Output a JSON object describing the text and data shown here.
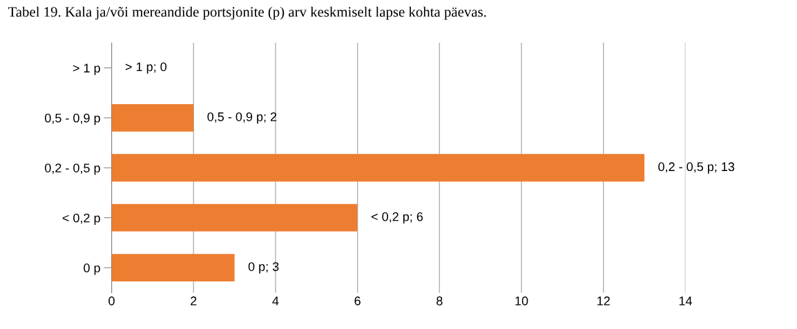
{
  "chart_data": {
    "type": "bar",
    "orientation": "horizontal",
    "title": "Tabel 19. Kala ja/või mereandide portsjonite (p) arv keskmiselt lapse kohta päevas.",
    "categories": [
      "> 1 p",
      "0,5 - 0,9 p",
      "0,2 - 0,5 p",
      "< 0,2 p",
      "0 p"
    ],
    "values": [
      0,
      2,
      13,
      6,
      3
    ],
    "value_labels": [
      "> 1 p; 0",
      "0,5 - 0,9 p; 2",
      "0,2 - 0,5 p; 13",
      "< 0,2 p; 6",
      "0 p; 3"
    ],
    "color": "#ed7d31",
    "xlim": [
      0,
      14
    ],
    "xticks": [
      0,
      2,
      4,
      6,
      8,
      10,
      12,
      14
    ],
    "grid": "x",
    "legend": false
  }
}
